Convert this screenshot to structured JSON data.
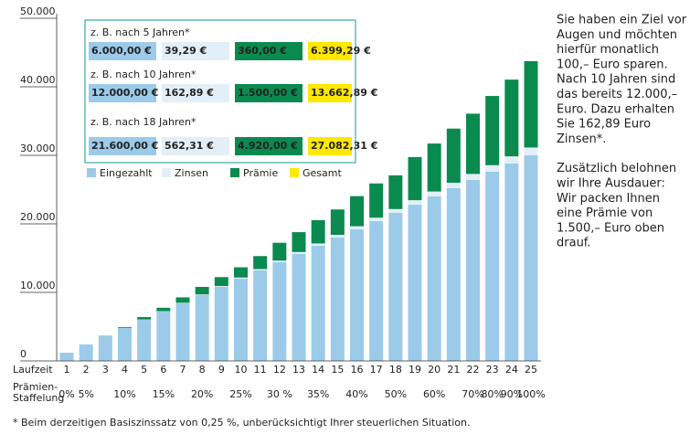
{
  "chart_data": {
    "type": "bar",
    "stacked": true,
    "x_label": "Laufzeit",
    "categories": [
      "1",
      "2",
      "3",
      "4",
      "5",
      "6",
      "7",
      "8",
      "9",
      "10",
      "11",
      "12",
      "13",
      "14",
      "15",
      "16",
      "17",
      "18",
      "19",
      "20",
      "21",
      "22",
      "23",
      "24",
      "25"
    ],
    "series": [
      {
        "name": "Eingezahlt",
        "color": "#9ccbe9",
        "values": [
          1200,
          2400,
          3600,
          4800,
          6000,
          7200,
          8400,
          9600,
          10800,
          12000,
          13200,
          14400,
          15600,
          16800,
          18000,
          19200,
          20400,
          21600,
          22800,
          24000,
          25200,
          26400,
          27600,
          28800,
          30000
        ]
      },
      {
        "name": "Zinsen",
        "color": "#e3eff8",
        "values": [
          2,
          6,
          12,
          24,
          39.29,
          55,
          75,
          100,
          130,
          162.89,
          200,
          240,
          290,
          340,
          400,
          450,
          500,
          562.31,
          650,
          720,
          800,
          880,
          960,
          1050,
          1140
        ]
      },
      {
        "name": "Prämie",
        "color": "#0b8a4f",
        "values": [
          0,
          0,
          40,
          120,
          360,
          500,
          800,
          1100,
          1300,
          1500,
          1900,
          2600,
          2900,
          3400,
          3700,
          4400,
          5000,
          4920,
          6300,
          7000,
          7900,
          8800,
          10100,
          11200,
          12600
        ]
      }
    ],
    "legend_extra": {
      "name": "Gesamt",
      "color": "#ffe800"
    },
    "rate_label": "Prämien-Staffelung",
    "rates": [
      "0%",
      "5%",
      null,
      "10%",
      null,
      "15%",
      null,
      "20%",
      null,
      "25%",
      null,
      "30 %",
      null,
      "35%",
      null,
      "40%",
      null,
      "50%",
      null,
      "60%",
      null,
      "70%",
      "80%",
      "90%",
      "100%"
    ],
    "ylim": [
      0,
      50000
    ],
    "yticks": [
      0,
      {
        "value": 10000,
        "label": "10.000"
      },
      {
        "value": 20000,
        "label": "20.000"
      },
      {
        "value": 30000,
        "label": "30.000"
      },
      {
        "value": 40000,
        "label": "40.000"
      },
      {
        "value": 50000,
        "label": "50.000"
      }
    ],
    "examples": [
      {
        "label": "z. B. nach 5 Jahren*",
        "cells": [
          "6.000,00 €",
          "39,29 €",
          "360,00 €",
          "6.399,29 €"
        ]
      },
      {
        "label": "z. B. nach 10 Jahren*",
        "cells": [
          "12.000,00 €",
          "162,89 €",
          "1.500,00 €",
          "13.662,89 €"
        ]
      },
      {
        "label": "z. B. nach 18 Jahren*",
        "cells": [
          "21.600,00 €",
          "562,31 €",
          "4.920,00 €",
          "27.082,31 €"
        ]
      }
    ],
    "side_text": [
      [
        "Sie haben ein Ziel vor",
        "Augen und möchten",
        "hierfür monatlich",
        "100,– Euro sparen.",
        "Nach 10 Jahren sind",
        "das bereits 12.000,–",
        "Euro. Dazu erhalten",
        "Sie 162,89 Euro",
        "Zinsen*."
      ],
      [
        "Zusätzlich belohnen",
        "wir Ihre Ausdauer:",
        "Wir packen Ihnen",
        "eine Prämie von",
        "1.500,– Euro oben",
        "drauf."
      ]
    ],
    "footnote": "* Beim derzeitigen Basiszinssatz von 0,25 %, unberücksichtigt Ihrer steuerlichen Situation."
  }
}
